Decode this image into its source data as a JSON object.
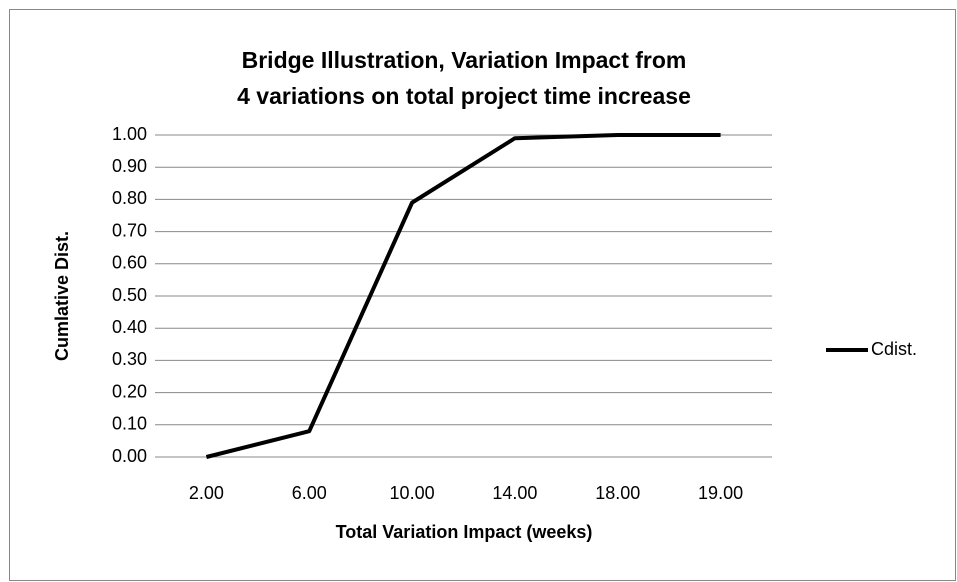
{
  "chart_data": {
    "type": "line",
    "title": [
      "Bridge Illustration, Variation Impact from",
      "4 variations on total project time increase"
    ],
    "x_label": "Total Variation Impact (weeks)",
    "y_label": "Cumlative Dist.",
    "categories": [
      "2.00",
      "6.00",
      "10.00",
      "14.00",
      "18.00",
      "19.00"
    ],
    "series": [
      {
        "name": "Cdist.",
        "color": "#000000",
        "values": [
          0,
          0.08,
          0.79,
          0.99,
          1.0,
          1.0
        ]
      }
    ],
    "ylim": [
      0,
      1
    ],
    "yticks": [
      {
        "value": 0,
        "label": "0.00"
      },
      {
        "value": 0.1,
        "label": "0.10"
      },
      {
        "value": 0.2,
        "label": "0.20"
      },
      {
        "value": 0.3,
        "label": "0.30"
      },
      {
        "value": 0.4,
        "label": "0.40"
      },
      {
        "value": 0.5,
        "label": "0.50"
      },
      {
        "value": 0.6,
        "label": "0.60"
      },
      {
        "value": 0.7,
        "label": "0.70"
      },
      {
        "value": 0.8,
        "label": "0.80"
      },
      {
        "value": 0.9,
        "label": "0.90"
      },
      {
        "value": 1,
        "label": "1.00"
      }
    ],
    "grid": true,
    "legend": "right"
  }
}
